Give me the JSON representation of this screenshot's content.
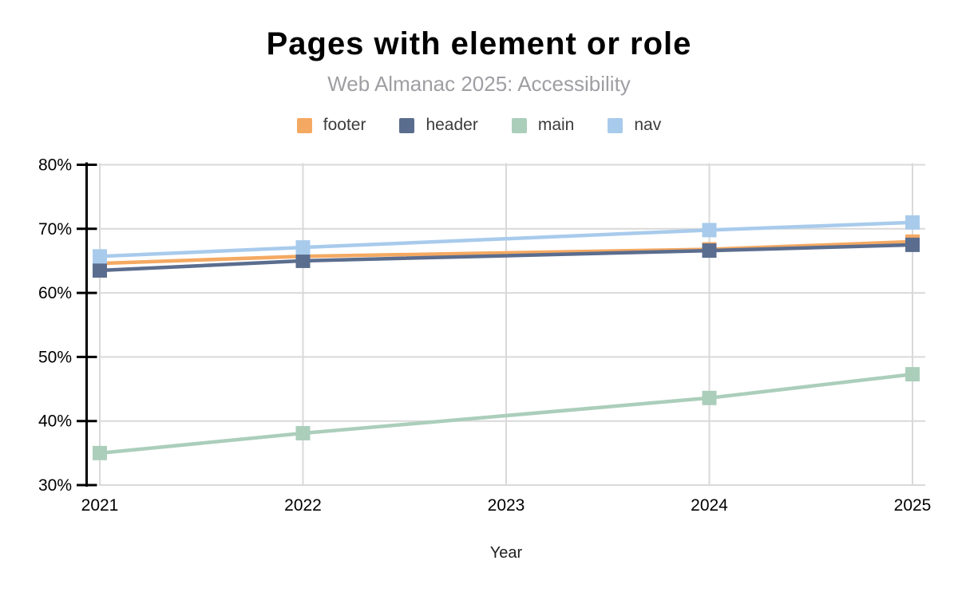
{
  "header": {
    "title": "Pages with element or role",
    "subtitle": "Web Almanac 2025: Accessibility"
  },
  "chart_data": {
    "type": "line",
    "title": "Pages with element or role",
    "subtitle": "Web Almanac 2025: Accessibility",
    "xlabel": "Year",
    "ylabel": "",
    "x": [
      2021,
      2022,
      2023,
      2024,
      2025
    ],
    "x_tick_labels": [
      "2021",
      "2022",
      "2023",
      "2024",
      "2025"
    ],
    "ylim": [
      30,
      80
    ],
    "yticks": [
      30,
      40,
      50,
      60,
      70,
      80
    ],
    "ytick_labels": [
      "30%",
      "40%",
      "50%",
      "60%",
      "70%",
      "80%"
    ],
    "grid": true,
    "legend_position": "top",
    "marker": "square",
    "note": "no data points for 2023; lines connect 2022 to 2024 directly",
    "series": [
      {
        "name": "footer",
        "color": "#F4A962",
        "values": [
          64.6,
          65.7,
          null,
          66.8,
          68.0
        ]
      },
      {
        "name": "header",
        "color": "#5B6D8E",
        "values": [
          63.5,
          65.0,
          null,
          66.6,
          67.5
        ]
      },
      {
        "name": "main",
        "color": "#ABCEBB",
        "values": [
          35.0,
          38.1,
          null,
          43.6,
          47.3
        ]
      },
      {
        "name": "nav",
        "color": "#A8CBEC",
        "values": [
          65.7,
          67.1,
          null,
          69.8,
          71.0
        ]
      }
    ]
  },
  "colors": {
    "grid": "#d9d9d9",
    "axis": "#000000",
    "tick_label": "#000000",
    "axis_title": "#1f1f1f",
    "background": "#ffffff"
  }
}
